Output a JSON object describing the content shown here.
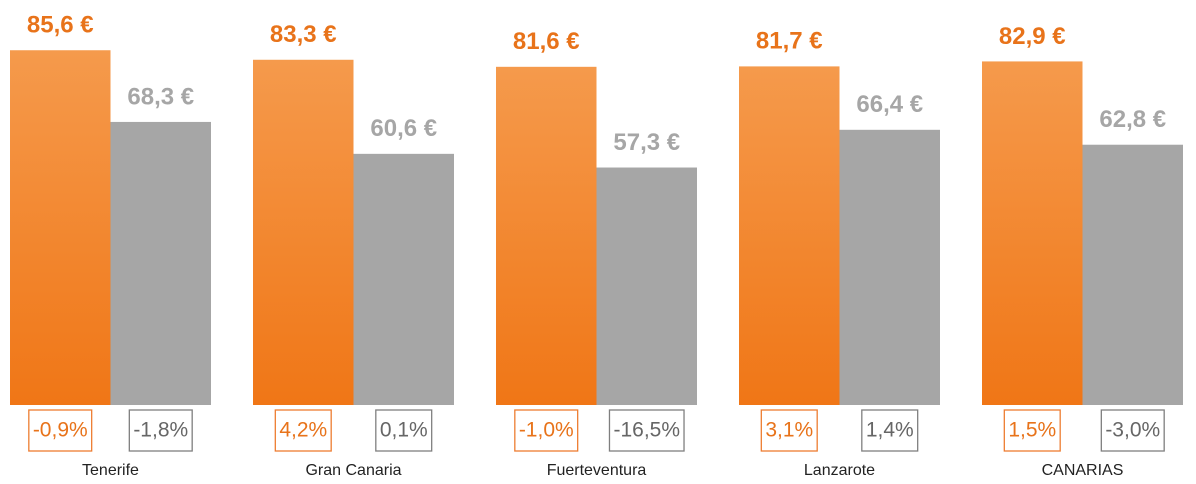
{
  "chart_data": {
    "type": "bar",
    "categories": [
      "Tenerife",
      "Gran Canaria",
      "Fuerteventura",
      "Lanzarote",
      "CANARIAS"
    ],
    "ylim": [
      0,
      90
    ],
    "series": [
      {
        "color": "#f07a1e",
        "values": [
          85.6,
          83.3,
          81.6,
          81.7,
          82.9
        ],
        "value_labels": [
          "85,6 €",
          "83,3 €",
          "81,6 €",
          "81,7 €",
          "82,9 €"
        ],
        "changes": [
          -0.9,
          4.2,
          -1.0,
          3.1,
          1.5
        ],
        "change_labels": [
          "-0,9%",
          "4,2%",
          "-1,0%",
          "3,1%",
          "1,5%"
        ]
      },
      {
        "color": "#a6a6a6",
        "values": [
          68.3,
          60.6,
          57.3,
          66.4,
          62.8
        ],
        "value_labels": [
          "68,3 €",
          "60,6 €",
          "57,3 €",
          "66,4 €",
          "62,8 €"
        ],
        "changes": [
          -1.8,
          0.1,
          -16.5,
          1.4,
          -3.0
        ],
        "change_labels": [
          "-1,8%",
          "0,1%",
          "-16,5%",
          "1,4%",
          "-3,0%"
        ]
      }
    ]
  }
}
